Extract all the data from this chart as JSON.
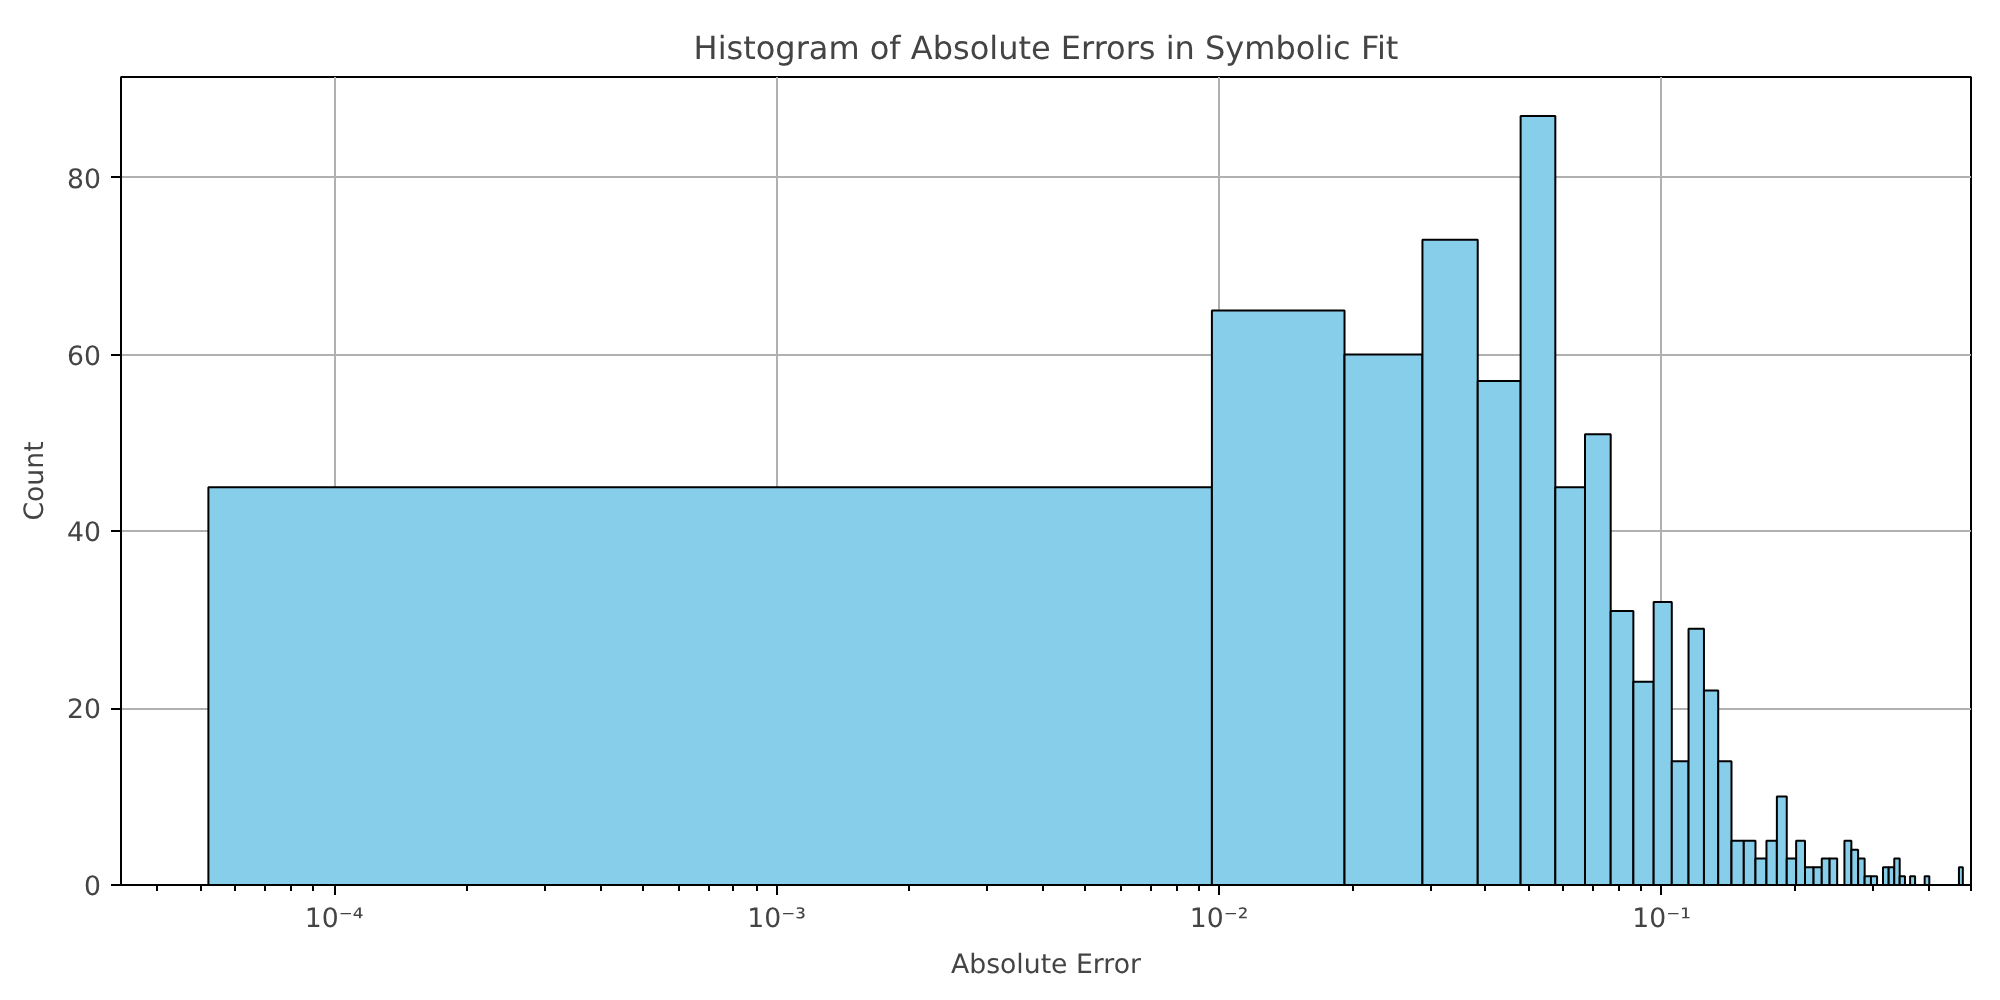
{
  "chart_data": {
    "type": "histogram",
    "title": "Histogram of Absolute Errors in Symbolic Fit",
    "xlabel": "Absolute Error",
    "ylabel": "Count",
    "bins": [
      5.2e-05,
      0.00963,
      0.0192,
      0.0288,
      0.0384,
      0.048,
      0.0575,
      0.0671,
      0.0767,
      0.0863,
      0.0959,
      0.1054,
      0.115,
      0.1246,
      0.1342,
      0.1438,
      0.1533,
      0.1629,
      0.1725,
      0.1821,
      0.1917,
      0.2013,
      0.2108,
      0.2204,
      0.23,
      0.2396,
      0.2492,
      0.2588,
      0.2683,
      0.2779,
      0.2875,
      0.2971,
      0.3067,
      0.3163,
      0.3258,
      0.3354,
      0.345,
      0.3546,
      0.3642,
      0.3738,
      0.3834,
      0.3929,
      0.4025,
      0.4121,
      0.4217,
      0.4313,
      0.4409,
      0.4505,
      0.46,
      0.4696,
      0.4792
    ],
    "values": [
      45,
      65,
      60,
      73,
      57,
      87,
      45,
      51,
      31,
      23,
      32,
      14,
      29,
      22,
      14,
      5,
      5,
      3,
      5,
      10,
      3,
      5,
      2,
      2,
      3,
      3,
      0,
      5,
      4,
      3,
      1,
      1,
      0,
      2,
      2,
      3,
      1,
      0,
      1,
      0,
      0,
      1,
      0,
      0,
      0,
      0,
      0,
      0,
      0,
      2
    ],
    "color": "#87ceeb",
    "log": "x",
    "xlim": [
      3.3e-05,
      0.5
    ],
    "ylim": [
      0,
      91.4
    ],
    "xticks": [
      {
        "value": 0.0001,
        "label": "10⁻⁴"
      },
      {
        "value": 0.001,
        "label": "10⁻³"
      },
      {
        "value": 0.01,
        "label": "10⁻²"
      },
      {
        "value": 0.1,
        "label": "10⁻¹"
      }
    ],
    "yticks": [
      0,
      20,
      40,
      60,
      80
    ],
    "grid": true
  }
}
